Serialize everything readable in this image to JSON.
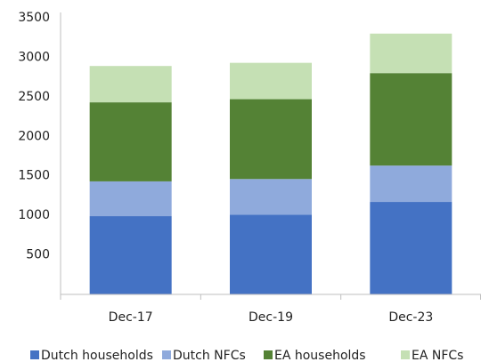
{
  "chart_data": {
    "type": "stacked_bar",
    "categories": [
      "Dec-17",
      "Dec-19",
      "Dec-23"
    ],
    "series": [
      {
        "name": "Dutch households",
        "color": "#4472c4",
        "values": [
          990,
          1010,
          1170
        ]
      },
      {
        "name": "Dutch NFCs",
        "color": "#8faadc",
        "values": [
          440,
          450,
          460
        ]
      },
      {
        "name": "EA households",
        "color": "#548235",
        "values": [
          1000,
          1010,
          1170
        ]
      },
      {
        "name": "EA NFCs",
        "color": "#c5e0b4",
        "values": [
          460,
          460,
          500
        ]
      }
    ],
    "ylim": [
      0,
      3500
    ],
    "yticks": [
      500,
      1000,
      1500,
      2000,
      2500,
      3000,
      3500
    ],
    "grid": false
  }
}
